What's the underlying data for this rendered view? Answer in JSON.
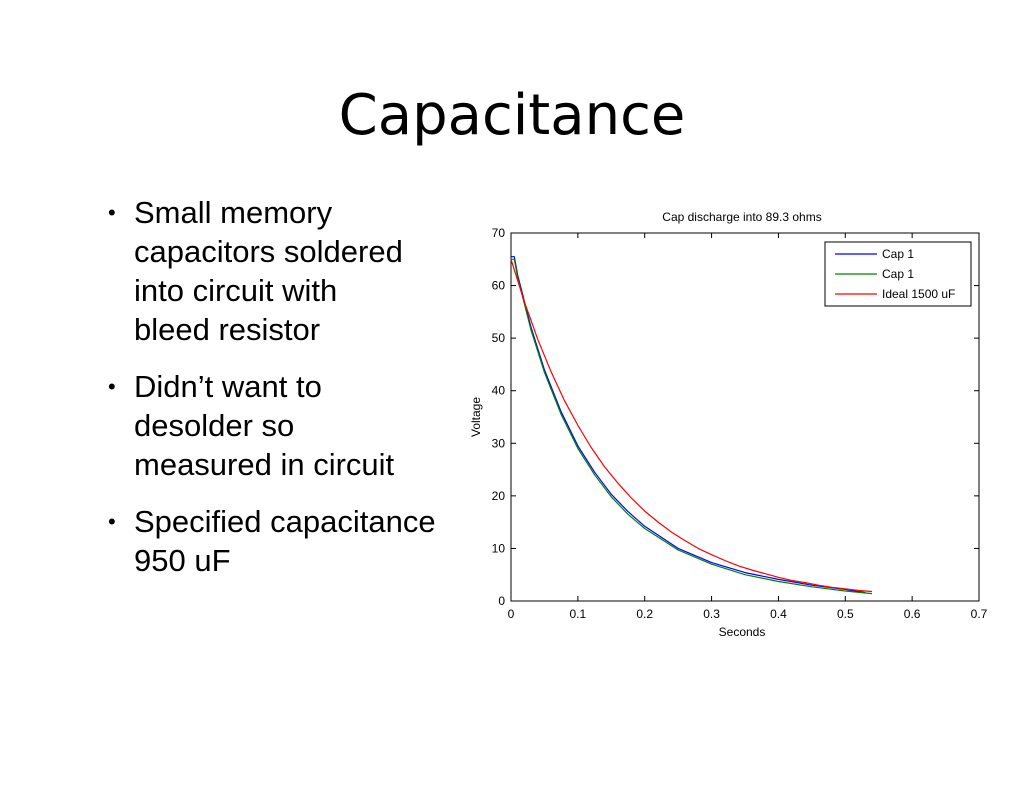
{
  "slide": {
    "title": "Capacitance",
    "bullets": [
      {
        "text": "Small memory capacitors soldered into circuit with bleed resistor",
        "lines": [
          "Small memory",
          "capacitors soldered",
          "into circuit with",
          "bleed resistor"
        ]
      },
      {
        "text": "Didn’t want to desolder so measured in circuit",
        "lines": [
          "Didn’t want to",
          "desolder so",
          "measured in circuit"
        ]
      },
      {
        "text": "Specified capacitance 950 uF",
        "lines": [
          "Specified capacitance",
          "950 uF"
        ]
      }
    ],
    "bullet_glyph": "•"
  },
  "chart_data": {
    "type": "line",
    "title": "Cap discharge into 89.3 ohms",
    "xlabel": "Seconds",
    "ylabel": "Voltage",
    "xlim": [
      0,
      0.7
    ],
    "ylim": [
      0,
      70
    ],
    "xticks": [
      0,
      0.1,
      0.2,
      0.3,
      0.4,
      0.5,
      0.6,
      0.7
    ],
    "xtick_labels": [
      "0",
      "0.1",
      "0.2",
      "0.3",
      "0.4",
      "0.5",
      "0.6",
      "0.7"
    ],
    "yticks": [
      0,
      10,
      20,
      30,
      40,
      50,
      60,
      70
    ],
    "ytick_labels": [
      "0",
      "10",
      "20",
      "30",
      "40",
      "50",
      "60",
      "70"
    ],
    "grid": false,
    "legend_position": "top-right",
    "series": [
      {
        "name": "Cap 1",
        "color": "#0000ff",
        "x": [
          0,
          0.005,
          0.01,
          0.02,
          0.03,
          0.05,
          0.075,
          0.1,
          0.125,
          0.15,
          0.175,
          0.2,
          0.25,
          0.3,
          0.35,
          0.4,
          0.45,
          0.5,
          0.53
        ],
        "y": [
          65.5,
          65.5,
          62,
          57,
          52,
          44,
          36,
          29.5,
          24.5,
          20.3,
          17,
          14.2,
          10,
          7.3,
          5.4,
          4.1,
          3,
          2.2,
          1.6
        ]
      },
      {
        "name": "Cap 1",
        "color": "#008000",
        "x": [
          0,
          0.005,
          0.01,
          0.02,
          0.03,
          0.05,
          0.075,
          0.1,
          0.125,
          0.15,
          0.175,
          0.2,
          0.25,
          0.3,
          0.35,
          0.4,
          0.45,
          0.5,
          0.54
        ],
        "y": [
          65,
          65,
          61.5,
          56.5,
          51.5,
          43.5,
          35.5,
          29,
          24,
          19.8,
          16.5,
          13.8,
          9.7,
          7,
          5,
          3.7,
          2.7,
          1.9,
          1.4
        ]
      },
      {
        "name": "Ideal 1500 uF",
        "color": "#ff0000",
        "x": [
          0,
          0.02,
          0.04,
          0.06,
          0.08,
          0.1,
          0.12,
          0.14,
          0.16,
          0.18,
          0.2,
          0.22,
          0.24,
          0.26,
          0.28,
          0.3,
          0.32,
          0.34,
          0.36,
          0.38,
          0.4,
          0.42,
          0.44,
          0.46,
          0.48,
          0.5,
          0.52,
          0.54
        ],
        "y": [
          65,
          56.9,
          49.8,
          43.6,
          38.1,
          33.4,
          29.2,
          25.5,
          22.4,
          19.6,
          17.1,
          15,
          13.1,
          11.5,
          10,
          8.8,
          7.7,
          6.7,
          5.9,
          5.2,
          4.5,
          3.9,
          3.5,
          3,
          2.6,
          2.3,
          2,
          1.8
        ]
      }
    ]
  }
}
